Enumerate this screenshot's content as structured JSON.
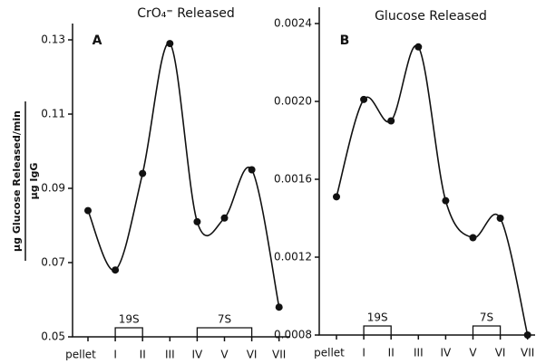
{
  "chart_data": [
    {
      "type": "line",
      "title": "CrO₄⁼ Released",
      "panel": "A",
      "ylabel": [
        "μg Glucose Released/min",
        "μg IgG"
      ],
      "categories": [
        "pellet",
        "I",
        "II",
        "III",
        "IV",
        "V",
        "VI",
        "VII"
      ],
      "values": [
        0.084,
        0.068,
        0.094,
        0.129,
        0.081,
        0.082,
        0.095,
        0.058
      ],
      "color": "#111111",
      "ylim": [
        0.05,
        0.13
      ],
      "yticks": [
        0.05,
        0.07,
        0.09,
        0.11,
        0.13
      ],
      "grid": false,
      "annotations": [
        {
          "text": "19S",
          "from": "I",
          "to": "II"
        },
        {
          "text": "7S",
          "from": "IV",
          "to": "VI"
        }
      ]
    },
    {
      "type": "line",
      "title": "Glucose Released",
      "panel": "B",
      "categories": [
        "pellet",
        "I",
        "II",
        "III",
        "IV",
        "V",
        "VI",
        "VII"
      ],
      "values": [
        0.00151,
        0.00201,
        0.0019,
        0.00228,
        0.00149,
        0.0013,
        0.0014,
        0.0008
      ],
      "color": "#111111",
      "ylim": [
        0.0008,
        0.0024
      ],
      "yticks": [
        0.0008,
        0.0012,
        0.0016,
        {
          "value": 0.002,
          "label": "0.0020"
        },
        0.0024
      ],
      "grid": false,
      "annotations": [
        {
          "text": "19S",
          "from": "I",
          "to": "II"
        },
        {
          "text": "7S",
          "from": "V",
          "to": "VI"
        }
      ]
    }
  ]
}
